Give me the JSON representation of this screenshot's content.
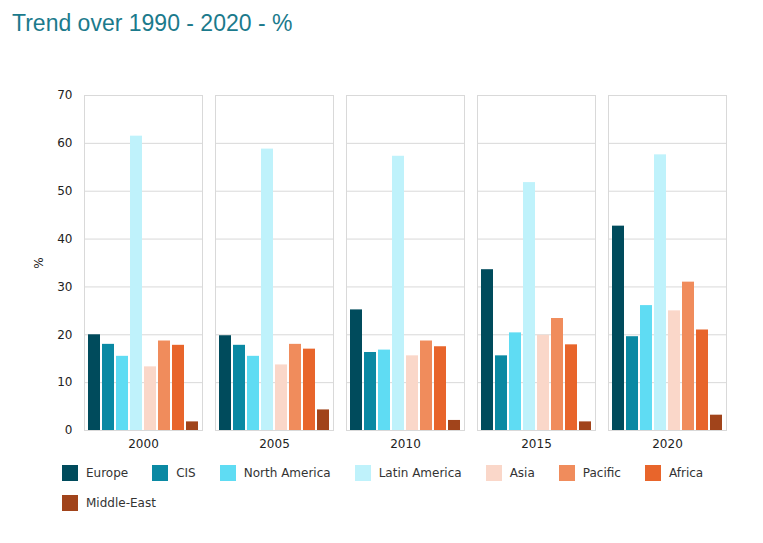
{
  "chart_data": {
    "type": "bar",
    "title": "Trend over 1990 - 2020 - %",
    "y_label": "%",
    "categories": [
      "2000",
      "2005",
      "2010",
      "2015",
      "2020"
    ],
    "series": [
      {
        "name": "Europe",
        "color": "#004b5c",
        "values": [
          20.0,
          19.8,
          25.2,
          33.6,
          42.7
        ]
      },
      {
        "name": "CIS",
        "color": "#0a89a3",
        "values": [
          18.0,
          17.8,
          16.3,
          15.6,
          19.6
        ]
      },
      {
        "name": "North America",
        "color": "#5fdcf3",
        "values": [
          15.5,
          15.5,
          16.8,
          20.4,
          26.1
        ]
      },
      {
        "name": "Latin America",
        "color": "#bff2fb",
        "values": [
          61.5,
          58.8,
          57.3,
          51.8,
          57.6
        ]
      },
      {
        "name": "Asia",
        "color": "#fad7c9",
        "values": [
          13.3,
          13.7,
          15.6,
          19.9,
          25.0
        ]
      },
      {
        "name": "Pacific",
        "color": "#f08c5c",
        "values": [
          18.7,
          18.0,
          18.7,
          23.4,
          31.0
        ]
      },
      {
        "name": "Africa",
        "color": "#e8652b",
        "values": [
          17.8,
          17.0,
          17.5,
          17.9,
          21.0
        ]
      },
      {
        "name": "Middle-East",
        "color": "#a1441b",
        "values": [
          1.8,
          4.3,
          2.1,
          1.8,
          3.2
        ]
      }
    ],
    "ylim": [
      0,
      70
    ],
    "yticks": [
      0,
      10,
      20,
      30,
      40,
      50,
      60,
      70
    ],
    "grid": true,
    "legend": "bottom"
  }
}
